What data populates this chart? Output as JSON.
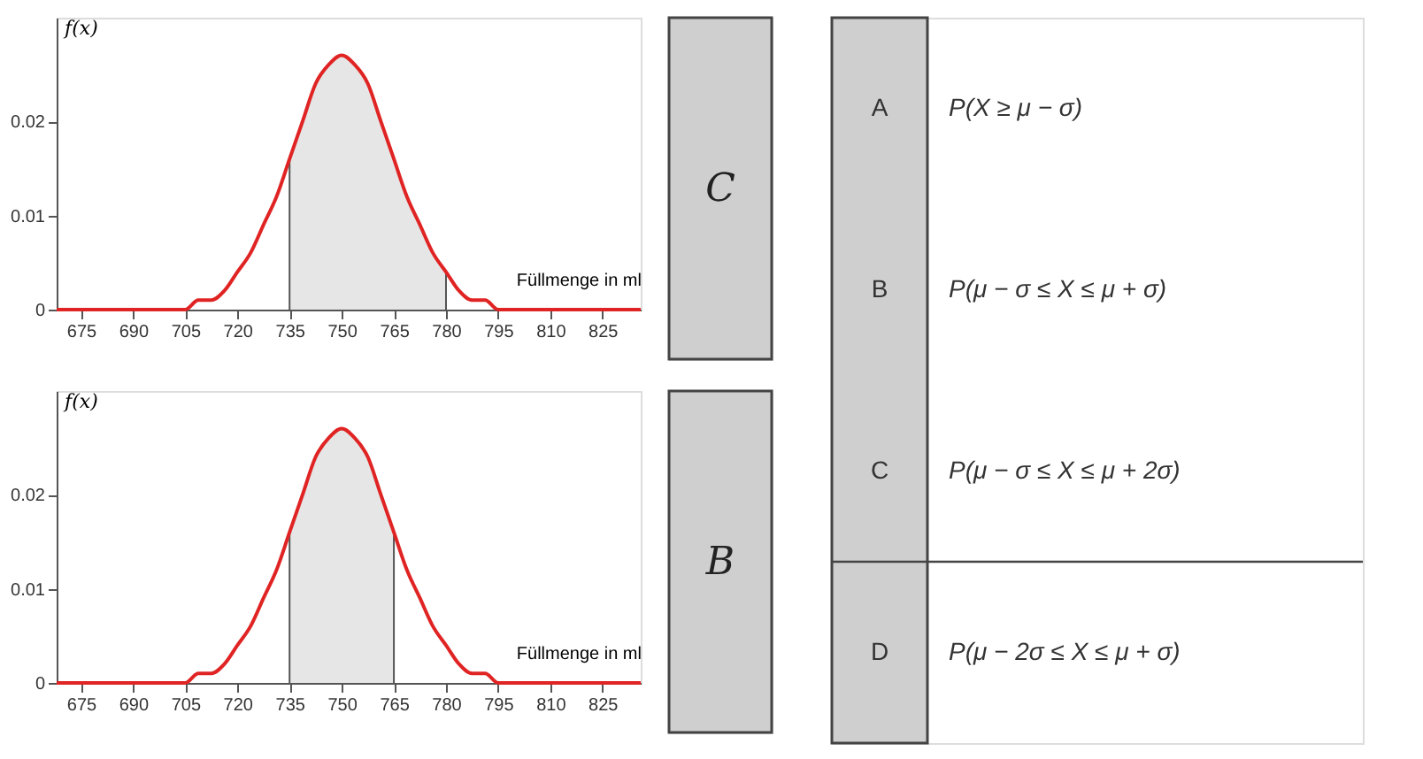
{
  "chart_data": [
    {
      "type": "line",
      "xlabel": "Füllmenge in ml",
      "ylabel": "f(x)",
      "xlim": [
        668,
        836
      ],
      "ylim": [
        0,
        0.031
      ],
      "xticks": [
        675,
        690,
        705,
        720,
        735,
        750,
        765,
        780,
        795,
        810,
        825
      ],
      "yticks": [
        0,
        0.01,
        0.02
      ],
      "grid": false,
      "annotations": [
        "C"
      ],
      "series": [
        {
          "type": "area",
          "color": "#e6e6e6",
          "x": [
            735,
            738.75,
            742.5,
            746.25,
            750,
            753.75,
            757.5,
            761.25,
            765,
            768.75,
            772.5,
            776.25,
            780
          ],
          "values": [
            0.016,
            0.02,
            0.024,
            0.026,
            0.027,
            0.026,
            0.024,
            0.02,
            0.016,
            0.012,
            0.009,
            0.006,
            0.004
          ]
        },
        {
          "type": "line",
          "color": "#555555",
          "x": [
            735,
            735
          ],
          "values": [
            0,
            0.016
          ]
        },
        {
          "type": "line",
          "color": "#555555",
          "x": [
            780,
            780
          ],
          "values": [
            0,
            0.004
          ]
        },
        {
          "type": "line",
          "color": "#e02424",
          "x": [
            668,
            675,
            690,
            705,
            708.75,
            712.5,
            716.25,
            720,
            723.75,
            727.5,
            731.25,
            735,
            738.75,
            742.5,
            746.25,
            750,
            753.75,
            757.5,
            761.25,
            765,
            768.75,
            772.5,
            776.25,
            780,
            783.75,
            787.5,
            791.25,
            795,
            810,
            825,
            836
          ],
          "values": [
            0,
            0,
            0,
            0,
            0.001,
            0.001,
            0.002,
            0.004,
            0.006,
            0.009,
            0.012,
            0.016,
            0.02,
            0.024,
            0.026,
            0.027,
            0.026,
            0.024,
            0.02,
            0.016,
            0.012,
            0.009,
            0.006,
            0.004,
            0.002,
            0.001,
            0.001,
            0,
            0,
            0,
            0
          ]
        }
      ]
    },
    {
      "type": "line",
      "xlabel": "Füllmenge in ml",
      "ylabel": "f(x)",
      "xlim": [
        668,
        836
      ],
      "ylim": [
        0,
        0.031
      ],
      "xticks": [
        675,
        690,
        705,
        720,
        735,
        750,
        765,
        780,
        795,
        810,
        825
      ],
      "yticks": [
        0,
        0.01,
        0.02
      ],
      "grid": false,
      "annotations": [
        "B"
      ],
      "series": [
        {
          "type": "area",
          "color": "#e6e6e6",
          "x": [
            735,
            738.75,
            742.5,
            746.25,
            750,
            753.75,
            757.5,
            761.25,
            765
          ],
          "values": [
            0.016,
            0.02,
            0.024,
            0.026,
            0.027,
            0.026,
            0.024,
            0.02,
            0.016
          ]
        },
        {
          "type": "line",
          "color": "#555555",
          "x": [
            735,
            735
          ],
          "values": [
            0,
            0.016
          ]
        },
        {
          "type": "line",
          "color": "#555555",
          "x": [
            765,
            765
          ],
          "values": [
            0,
            0.016
          ]
        },
        {
          "type": "line",
          "color": "#e02424",
          "x": [
            668,
            675,
            690,
            705,
            708.75,
            712.5,
            716.25,
            720,
            723.75,
            727.5,
            731.25,
            735,
            738.75,
            742.5,
            746.25,
            750,
            753.75,
            757.5,
            761.25,
            765,
            768.75,
            772.5,
            776.25,
            780,
            783.75,
            787.5,
            791.25,
            795,
            810,
            825,
            836
          ],
          "values": [
            0,
            0,
            0,
            0,
            0.001,
            0.001,
            0.002,
            0.004,
            0.006,
            0.009,
            0.012,
            0.016,
            0.02,
            0.024,
            0.026,
            0.027,
            0.026,
            0.024,
            0.02,
            0.016,
            0.012,
            0.009,
            0.006,
            0.004,
            0.002,
            0.001,
            0.001,
            0,
            0,
            0,
            0
          ]
        }
      ]
    },
    {
      "type": "other",
      "annotations": [
        "A",
        "P(X ≥  μ − σ)",
        "B",
        "P(μ − σ ≤ X ≤ μ + σ)",
        "C",
        "P(μ − σ ≤ X ≤ μ + 2σ)",
        "D",
        "P(μ − 2σ ≤ X ≤ μ + σ)"
      ]
    }
  ]
}
